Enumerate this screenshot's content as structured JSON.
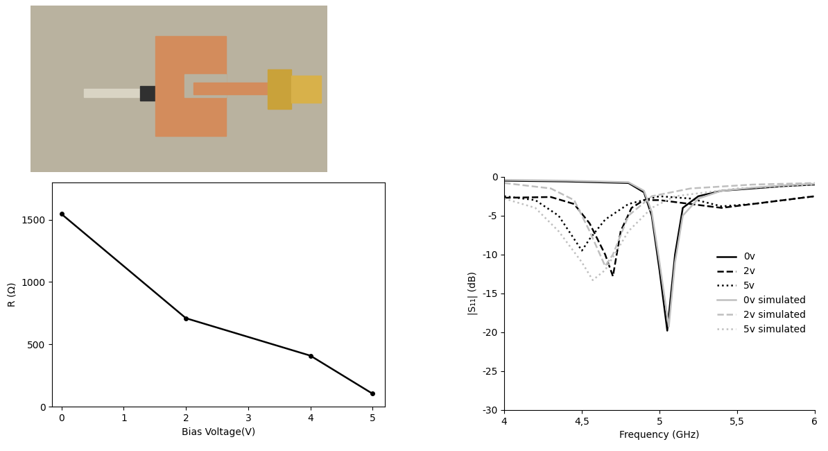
{
  "chart_data": [
    {
      "type": "line",
      "x_label": "Bias Voltage(V)",
      "y_label": "R (Ω)",
      "x": [
        0,
        2,
        4,
        5
      ],
      "values": [
        1545,
        710,
        410,
        105
      ],
      "color": "#000000",
      "marker": "o",
      "line_style": "solid",
      "xlim": [
        -0.15,
        5.2
      ],
      "xticks": [
        0,
        1,
        2,
        3,
        4,
        5
      ],
      "ylim": [
        0,
        1800
      ],
      "yticks": [
        0,
        500,
        1000,
        1500
      ]
    },
    {
      "type": "line",
      "x_label": "Frequency (GHz)",
      "y_label": "|S₁₁| (dB)",
      "xlim": [
        4,
        6
      ],
      "xticks": [
        4,
        {
          "value": 4.5,
          "label": "4,5"
        },
        5,
        {
          "value": 5.5,
          "label": "5,5"
        },
        6
      ],
      "ylim": [
        -30,
        0
      ],
      "yticks": [
        -30,
        -25,
        -20,
        -15,
        -10,
        -5,
        0
      ],
      "legend": "center right",
      "series": [
        {
          "name": "0v",
          "color": "#000000",
          "line_style": "solid",
          "x": [
            4.0,
            4.4,
            4.8,
            4.9,
            4.95,
            5.0,
            5.05,
            5.1,
            5.15,
            5.25,
            5.4,
            5.6,
            5.8,
            6.0
          ],
          "values": [
            -0.5,
            -0.6,
            -0.8,
            -2,
            -5,
            -12,
            -19.8,
            -10,
            -4,
            -2.5,
            -1.8,
            -1.5,
            -1.2,
            -1.0
          ]
        },
        {
          "name": "2v",
          "color": "#000000",
          "line_style": "dashed",
          "x": [
            4.0,
            4.3,
            4.45,
            4.55,
            4.65,
            4.7,
            4.75,
            4.82,
            4.9,
            5.0,
            5.2,
            5.4,
            5.6,
            6.0
          ],
          "values": [
            -2.7,
            -2.6,
            -3.5,
            -6,
            -10,
            -12.8,
            -7,
            -4,
            -3,
            -3,
            -3.5,
            -4,
            -3.5,
            -2.5
          ]
        },
        {
          "name": "5v",
          "color": "#000000",
          "line_style": "dotted",
          "x": [
            4.0,
            4.2,
            4.35,
            4.45,
            4.5,
            4.55,
            4.65,
            4.8,
            5.0,
            5.2,
            5.4,
            5.6,
            6.0
          ],
          "values": [
            -2.5,
            -3,
            -5,
            -8,
            -9.5,
            -8,
            -5.5,
            -3.5,
            -2.5,
            -2.8,
            -3.8,
            -3.5,
            -2.5
          ]
        },
        {
          "name": "0v simulated",
          "color": "#bfbfbf",
          "line_style": "solid",
          "x": [
            4.0,
            4.4,
            4.8,
            4.9,
            4.95,
            5.0,
            5.06,
            5.1,
            5.15,
            5.25,
            5.4,
            5.6,
            5.8,
            6.0
          ],
          "values": [
            -0.4,
            -0.5,
            -0.7,
            -1.8,
            -4.5,
            -11,
            -19.3,
            -11,
            -5,
            -2.8,
            -1.8,
            -1.4,
            -1.1,
            -0.9
          ]
        },
        {
          "name": "2v simulated",
          "color": "#bfbfbf",
          "line_style": "dashed",
          "x": [
            4.0,
            4.3,
            4.45,
            4.55,
            4.65,
            4.7,
            4.8,
            4.95,
            5.2,
            5.6,
            6.0
          ],
          "values": [
            -0.8,
            -1.5,
            -3,
            -7,
            -11.5,
            -10,
            -5,
            -2.5,
            -1.5,
            -1.0,
            -0.8
          ]
        },
        {
          "name": "5v simulated",
          "color": "#bfbfbf",
          "line_style": "dotted",
          "x": [
            4.0,
            4.2,
            4.35,
            4.5,
            4.57,
            4.65,
            4.8,
            4.95,
            5.1,
            5.5,
            6.0
          ],
          "values": [
            -2.8,
            -4,
            -7,
            -11,
            -13.3,
            -12,
            -7,
            -4,
            -2.5,
            -1.5,
            -1.0
          ]
        }
      ]
    }
  ]
}
